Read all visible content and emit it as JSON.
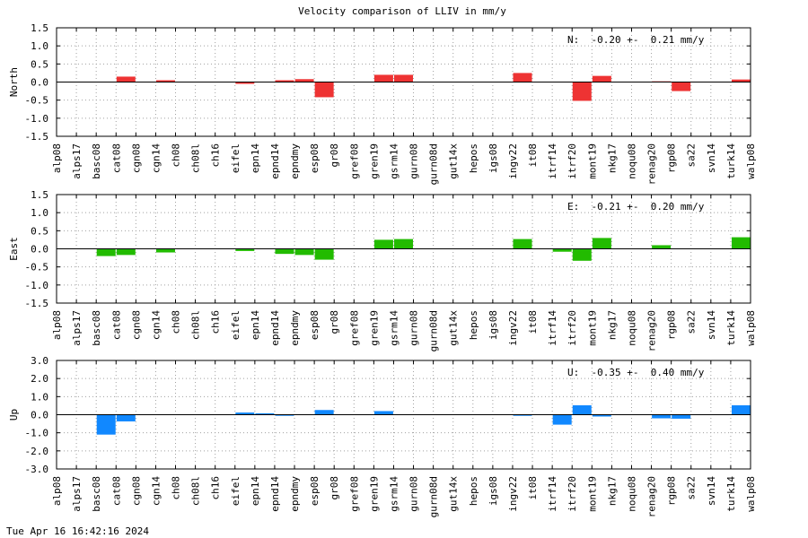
{
  "title": "Velocity comparison of LLIV in mm/y",
  "footer_timestamp": "Tue Apr 16 16:42:16 2024",
  "chart_data": [
    {
      "type": "bar",
      "ylabel": "North",
      "annotation": "N:  -0.20 +-  0.21 mm/y",
      "color": "#ee3333",
      "ylim": [
        -1.5,
        1.5
      ],
      "yticks": [
        1.5,
        1.0,
        0.5,
        0.0,
        -0.5,
        -1.0,
        -1.5
      ],
      "ytick_labels": [
        "1.5",
        "1.0",
        "0.5",
        "0.0",
        "-0.5",
        "-1.0",
        "-1.5"
      ],
      "grid": true,
      "categories": [
        "alp08",
        "alps17",
        "basc08",
        "cat08",
        "cgn08",
        "cgn14",
        "ch08",
        "ch08l",
        "ch16",
        "eifel",
        "epn14",
        "epnd14",
        "epndmy",
        "esp08",
        "gr08",
        "gref08",
        "gren19",
        "gsrm14",
        "gurn08",
        "gurn08d",
        "gut14x",
        "hepos",
        "igs08",
        "ingv22",
        "it08",
        "itrf14",
        "itrf20",
        "mont19",
        "nkg17",
        "noqu08",
        "renag20",
        "rgp08",
        "sa22",
        "svn14",
        "turk14",
        "walp08"
      ],
      "values": [
        0,
        0,
        0,
        0.15,
        0,
        0.05,
        0,
        0,
        0,
        -0.05,
        0,
        0.05,
        0.08,
        -0.42,
        0,
        0,
        0.2,
        0.2,
        0,
        0,
        0,
        0,
        0,
        0.25,
        0,
        0,
        -0.52,
        0.17,
        0,
        0,
        0.02,
        -0.25,
        0,
        0,
        0,
        0.07
      ]
    },
    {
      "type": "bar",
      "ylabel": "East",
      "annotation": "E:  -0.21 +-  0.20 mm/y",
      "color": "#22bb00",
      "ylim": [
        -1.5,
        1.5
      ],
      "yticks": [
        1.5,
        1.0,
        0.5,
        0.0,
        -0.5,
        -1.0,
        -1.5
      ],
      "ytick_labels": [
        "1.5",
        "1.0",
        "0.5",
        "0.0",
        "-0.5",
        "-1.0",
        "-1.5"
      ],
      "grid": true,
      "categories": [
        "alp08",
        "alps17",
        "basc08",
        "cat08",
        "cgn08",
        "cgn14",
        "ch08",
        "ch08l",
        "ch16",
        "eifel",
        "epn14",
        "epnd14",
        "epndmy",
        "esp08",
        "gr08",
        "gref08",
        "gren19",
        "gsrm14",
        "gurn08",
        "gurn08d",
        "gut14x",
        "hepos",
        "igs08",
        "ingv22",
        "it08",
        "itrf14",
        "itrf20",
        "mont19",
        "nkg17",
        "noqu08",
        "renag20",
        "rgp08",
        "sa22",
        "svn14",
        "turk14",
        "walp08"
      ],
      "values": [
        0,
        0,
        -0.2,
        -0.17,
        0,
        -0.1,
        0,
        0,
        0,
        -0.06,
        0,
        -0.14,
        -0.17,
        -0.3,
        0,
        0,
        0.25,
        0.27,
        0,
        0,
        0,
        0,
        0,
        0.27,
        0,
        -0.08,
        -0.33,
        0.3,
        0,
        0,
        0.1,
        0,
        0,
        0,
        0,
        0.32
      ]
    },
    {
      "type": "bar",
      "ylabel": "Up",
      "annotation": "U:  -0.35 +-  0.40 mm/y",
      "color": "#1188ff",
      "ylim": [
        -3.0,
        3.0
      ],
      "yticks": [
        3.0,
        2.0,
        1.0,
        0.0,
        -1.0,
        -2.0,
        -3.0
      ],
      "ytick_labels": [
        "3.0",
        "2.0",
        "1.0",
        "0.0",
        "-1.0",
        "-2.0",
        "-3.0"
      ],
      "grid": true,
      "categories": [
        "alp08",
        "alps17",
        "basc08",
        "cat08",
        "cgn08",
        "cgn14",
        "ch08",
        "ch08l",
        "ch16",
        "eifel",
        "epn14",
        "epnd14",
        "epndmy",
        "esp08",
        "gr08",
        "gref08",
        "gren19",
        "gsrm14",
        "gurn08",
        "gurn08d",
        "gut14x",
        "hepos",
        "igs08",
        "ingv22",
        "it08",
        "itrf14",
        "itrf20",
        "mont19",
        "nkg17",
        "noqu08",
        "renag20",
        "rgp08",
        "sa22",
        "svn14",
        "turk14",
        "walp08"
      ],
      "values": [
        0,
        0,
        -1.1,
        -0.37,
        0,
        0,
        0,
        0,
        0,
        0.12,
        0.08,
        -0.06,
        0,
        0.26,
        0,
        0,
        0.2,
        0,
        0,
        0,
        0,
        0,
        0,
        -0.06,
        0,
        -0.55,
        0.52,
        -0.1,
        0,
        0,
        -0.2,
        -0.22,
        0,
        0,
        0,
        0.52
      ]
    }
  ]
}
